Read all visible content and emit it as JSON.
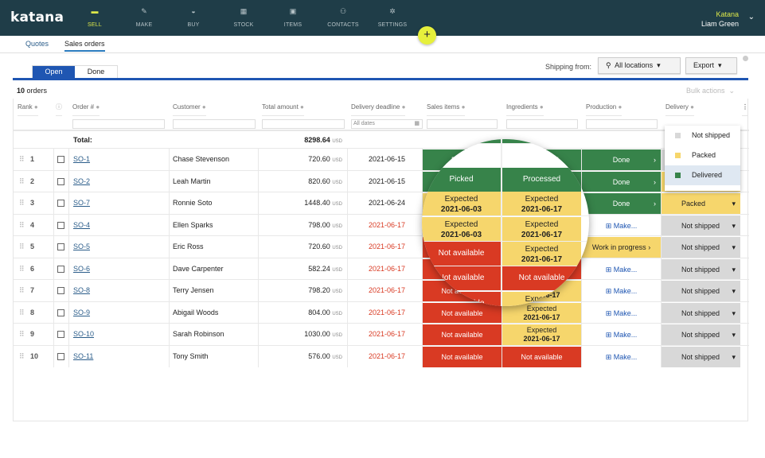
{
  "app": {
    "logo": "katana",
    "company": "Katana",
    "user": "Liam Green"
  },
  "nav": [
    {
      "label": "SELL",
      "icon": "sell-icon"
    },
    {
      "label": "MAKE",
      "icon": "make-icon"
    },
    {
      "label": "BUY",
      "icon": "buy-icon"
    },
    {
      "label": "STOCK",
      "icon": "stock-icon"
    },
    {
      "label": "ITEMS",
      "icon": "items-icon"
    },
    {
      "label": "CONTACTS",
      "icon": "contacts-icon"
    },
    {
      "label": "SETTINGS",
      "icon": "settings-icon"
    }
  ],
  "plus": "+",
  "subtabs": [
    "Quotes",
    "Sales orders"
  ],
  "toggle": [
    "Open",
    "Done"
  ],
  "toolbar": {
    "ship_label": "Shipping from:",
    "locations": "All locations",
    "export": "Export",
    "bulk": "Bulk actions"
  },
  "count": {
    "num": "10",
    "label": " orders"
  },
  "columns": [
    "Rank",
    "Order #",
    "Customer",
    "Total amount",
    "Delivery deadline",
    "Sales items",
    "Ingredients",
    "Production",
    "Delivery"
  ],
  "filter": {
    "dates": "All dates"
  },
  "total": {
    "label": "Total:",
    "value": "8298.64",
    "cur": "USD"
  },
  "rows": [
    {
      "rank": "1",
      "order": "SO-1",
      "customer": "Chase Stevenson",
      "amount": "720.60",
      "date": "2021-06-15",
      "late": false,
      "sales": "Picked",
      "ingr": "Processed",
      "prod": "Done",
      "deliv": "Not shipped"
    },
    {
      "rank": "2",
      "order": "SO-2",
      "customer": "Leah Martin",
      "amount": "820.60",
      "date": "2021-06-15",
      "late": false,
      "sales": "Picked",
      "ingr": "Processed",
      "prod": "Done",
      "deliv": "Packed"
    },
    {
      "rank": "3",
      "order": "SO-7",
      "customer": "Ronnie Soto",
      "amount": "1448.40",
      "date": "2021-06-24",
      "late": false,
      "sales": "Expected",
      "ingr": "Expected",
      "prod": "Done",
      "deliv": "Packed"
    },
    {
      "rank": "4",
      "order": "SO-4",
      "customer": "Ellen Sparks",
      "amount": "798.00",
      "date": "2021-06-17",
      "late": true,
      "sales": "Expected",
      "ingr": "Expected",
      "prod": "Make...",
      "deliv": "Not shipped"
    },
    {
      "rank": "5",
      "order": "SO-5",
      "customer": "Eric Ross",
      "amount": "720.60",
      "date": "2021-06-17",
      "late": true,
      "sales": "Not available",
      "ingr": "Expected",
      "prod": "Work in progress",
      "deliv": "Not shipped"
    },
    {
      "rank": "6",
      "order": "SO-6",
      "customer": "Dave Carpenter",
      "amount": "582.24",
      "date": "2021-06-17",
      "late": true,
      "sales": "Not available",
      "ingr": "Not available",
      "prod": "Make...",
      "deliv": "Not shipped"
    },
    {
      "rank": "7",
      "order": "SO-8",
      "customer": "Terry Jensen",
      "amount": "798.20",
      "date": "2021-06-17",
      "late": true,
      "sales": "Not available",
      "ingr": "Expected",
      "prod": "Make...",
      "deliv": "Not shipped"
    },
    {
      "rank": "8",
      "order": "SO-9",
      "customer": "Abigail Woods",
      "amount": "804.00",
      "date": "2021-06-17",
      "late": true,
      "sales": "Not available",
      "ingr": "Expected",
      "prod": "Make...",
      "deliv": "Not shipped"
    },
    {
      "rank": "9",
      "order": "SO-10",
      "customer": "Sarah Robinson",
      "amount": "1030.00",
      "date": "2021-06-17",
      "late": true,
      "sales": "Not available",
      "ingr": "Expected",
      "prod": "Make...",
      "deliv": "Not shipped"
    },
    {
      "rank": "10",
      "order": "SO-11",
      "customer": "Tony Smith",
      "amount": "576.00",
      "date": "2021-06-17",
      "late": true,
      "sales": "Not available",
      "ingr": "Not available",
      "prod": "Make...",
      "deliv": "Not shipped"
    }
  ],
  "expected_dates": {
    "sales": "2021-06-03",
    "ingr": "2021-06-17"
  },
  "currency": "USD",
  "dropdown": [
    "Not shipped",
    "Packed",
    "Delivered"
  ],
  "colors": {
    "done": "#37834a",
    "not_available": "#d93a23",
    "expected": "#f6d66c",
    "accent": "#1f56b2",
    "topbar": "#1f3d48"
  }
}
